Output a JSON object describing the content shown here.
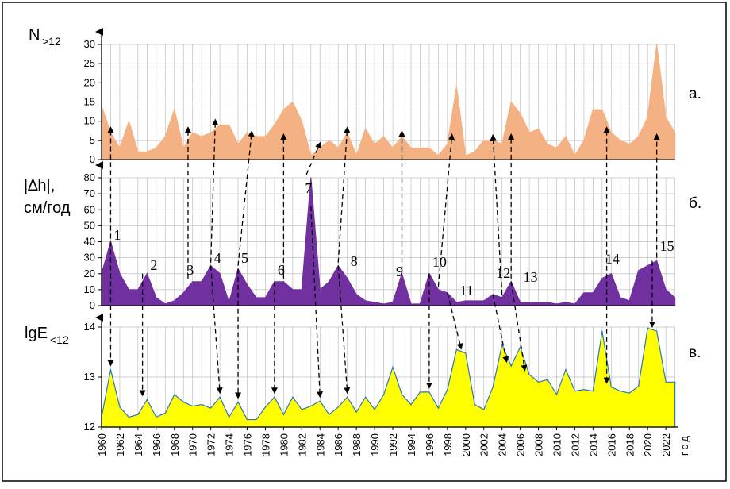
{
  "colors": {
    "panel_a_fill": "#F4B183",
    "panel_b_fill": "#7030A0",
    "panel_c_fill": "#FFFF00",
    "panel_c_line": "#2E75B6",
    "grid": "#BFBFBF",
    "axis": "#000000"
  },
  "chart_data": [
    {
      "type": "area",
      "panel_label": "а.",
      "ylabel_main": "N",
      "ylabel_sub": ">12",
      "ylim": [
        0,
        30
      ],
      "yticks": [
        0,
        5,
        10,
        15,
        20,
        25,
        30
      ],
      "grid": true,
      "x_start": 1960,
      "x_step": 1,
      "values": [
        14,
        7,
        3,
        10,
        2,
        2,
        3,
        6,
        13,
        3,
        7,
        6,
        7,
        9,
        9,
        4,
        7,
        6,
        6,
        9,
        13,
        15,
        10,
        1,
        3,
        5,
        3,
        7,
        1,
        8,
        4,
        6,
        3,
        6,
        3,
        3,
        3,
        1,
        4,
        19,
        1,
        2,
        5,
        5,
        4,
        15,
        12,
        7,
        8,
        4,
        3,
        6,
        1,
        5,
        13,
        13,
        7,
        5,
        4,
        6,
        11,
        30,
        11,
        7
      ]
    },
    {
      "type": "area",
      "panel_label": "б.",
      "ylabel_main": "|∆h|,",
      "ylabel_unit": "см/год",
      "ylim": [
        0,
        80
      ],
      "yticks": [
        0,
        10,
        20,
        30,
        40,
        50,
        60,
        70,
        80
      ],
      "grid": true,
      "x_start": 1960,
      "x_step": 1,
      "values": [
        20,
        40,
        20,
        10,
        10,
        20,
        5,
        1,
        3,
        8,
        15,
        15,
        25,
        20,
        2,
        23,
        13,
        5,
        5,
        15,
        15,
        10,
        10,
        80,
        10,
        15,
        25,
        17,
        7,
        3,
        2,
        1,
        2,
        20,
        1,
        1,
        20,
        10,
        8,
        2,
        3,
        3,
        3,
        7,
        5,
        15,
        2,
        2,
        2,
        2,
        1,
        2,
        1,
        8,
        8,
        17,
        20,
        5,
        3,
        22,
        25,
        28,
        10,
        5
      ],
      "annotations": [
        {
          "label": "1",
          "year": 1961
        },
        {
          "label": "2",
          "year": 1965
        },
        {
          "label": "3",
          "year": 1969
        },
        {
          "label": "4",
          "year": 1972
        },
        {
          "label": "5",
          "year": 1975
        },
        {
          "label": "6",
          "year": 1979
        },
        {
          "label": "7",
          "year": 1982
        },
        {
          "label": "8",
          "year": 1987
        },
        {
          "label": "9",
          "year": 1992
        },
        {
          "label": "10",
          "year": 1996
        },
        {
          "label": "11",
          "year": 1999
        },
        {
          "label": "12",
          "year": 2003
        },
        {
          "label": "13",
          "year": 2006
        },
        {
          "label": "14",
          "year": 2015
        },
        {
          "label": "15",
          "year": 2021
        }
      ]
    },
    {
      "type": "area",
      "panel_label": "в.",
      "ylabel_main": "lgE",
      "ylabel_sub": "<12",
      "ylim": [
        12,
        14
      ],
      "yticks": [
        12,
        13,
        14
      ],
      "grid": true,
      "x_start": 1960,
      "x_step": 1,
      "values": [
        12.2,
        13.15,
        12.4,
        12.2,
        12.25,
        12.55,
        12.2,
        12.28,
        12.65,
        12.5,
        12.42,
        12.45,
        12.38,
        12.6,
        12.2,
        12.5,
        12.15,
        12.15,
        12.4,
        12.6,
        12.25,
        12.6,
        12.35,
        12.42,
        12.52,
        12.25,
        12.4,
        12.6,
        12.3,
        12.6,
        12.35,
        12.65,
        13.2,
        12.65,
        12.45,
        12.7,
        12.7,
        12.38,
        12.75,
        13.55,
        13.48,
        12.45,
        12.35,
        12.8,
        13.65,
        13.22,
        13.6,
        13.05,
        12.9,
        12.95,
        12.65,
        13.15,
        12.72,
        12.75,
        12.72,
        13.92,
        12.8,
        12.72,
        12.68,
        12.82,
        13.98,
        13.92,
        12.9,
        12.9
      ]
    }
  ],
  "x_axis": {
    "tick_labels": [
      "1960",
      "1962",
      "1964",
      "1966",
      "1968",
      "1970",
      "1972",
      "1974",
      "1976",
      "1978",
      "1980",
      "1982",
      "1984",
      "1986",
      "1988",
      "1990",
      "1992",
      "1994",
      "1996",
      "1998",
      "2000",
      "2002",
      "2004",
      "2006",
      "2008",
      "2010",
      "2012",
      "2014",
      "2016",
      "2018",
      "2020",
      "2022"
    ],
    "unit_label": "год"
  },
  "arrows": [
    {
      "from_panel": "b",
      "from_year": 1961,
      "to_panel": "a",
      "to_year": 1961,
      "direction": "up"
    },
    {
      "from_panel": "b",
      "from_year": 1961,
      "to_panel": "c",
      "to_year": 1961,
      "direction": "down"
    },
    {
      "from_panel": "b",
      "from_year": 1964.5,
      "to_panel": "c",
      "to_year": 1964.5,
      "direction": "down"
    },
    {
      "from_panel": "b",
      "from_year": 1969.5,
      "to_panel": "a",
      "to_year": 1969.5,
      "direction": "up"
    },
    {
      "from_panel": "b",
      "from_year": 1972,
      "to_panel": "a",
      "to_year": 1972.5,
      "direction": "up"
    },
    {
      "from_panel": "b",
      "from_year": 1972,
      "to_panel": "c",
      "to_year": 1973,
      "direction": "down"
    },
    {
      "from_panel": "b",
      "from_year": 1975,
      "to_panel": "a",
      "to_year": 1976.5,
      "direction": "up"
    },
    {
      "from_panel": "b",
      "from_year": 1975,
      "to_panel": "c",
      "to_year": 1975,
      "direction": "down"
    },
    {
      "from_panel": "b",
      "from_year": 1980,
      "to_panel": "a",
      "to_year": 1980,
      "direction": "up"
    },
    {
      "from_panel": "b",
      "from_year": 1979,
      "to_panel": "c",
      "to_year": 1979,
      "direction": "down"
    },
    {
      "from_panel": "b",
      "from_year": 1982.5,
      "to_panel": "a",
      "to_year": 1984,
      "direction": "up"
    },
    {
      "from_panel": "b",
      "from_year": 1983,
      "to_panel": "c",
      "to_year": 1984,
      "direction": "down"
    },
    {
      "from_panel": "b",
      "from_year": 1986,
      "to_panel": "a",
      "to_year": 1987,
      "direction": "up"
    },
    {
      "from_panel": "b",
      "from_year": 1986,
      "to_panel": "c",
      "to_year": 1987,
      "direction": "down"
    },
    {
      "from_panel": "b",
      "from_year": 1993,
      "to_panel": "a",
      "to_year": 1993,
      "direction": "up"
    },
    {
      "from_panel": "b",
      "from_year": 1996,
      "to_panel": "c",
      "to_year": 1996,
      "direction": "down"
    },
    {
      "from_panel": "b",
      "from_year": 1997,
      "to_panel": "a",
      "to_year": 1998.5,
      "direction": "up"
    },
    {
      "from_panel": "b",
      "from_year": 1998,
      "to_panel": "c",
      "to_year": 1999.5,
      "direction": "down"
    },
    {
      "from_panel": "b",
      "from_year": 2004,
      "to_panel": "a",
      "to_year": 2003,
      "direction": "up"
    },
    {
      "from_panel": "b",
      "from_year": 2003,
      "to_panel": "c",
      "to_year": 2004.5,
      "direction": "down"
    },
    {
      "from_panel": "b",
      "from_year": 2005,
      "to_panel": "a",
      "to_year": 2005,
      "direction": "up"
    },
    {
      "from_panel": "b",
      "from_year": 2005,
      "to_panel": "c",
      "to_year": 2006.5,
      "direction": "down"
    },
    {
      "from_panel": "b",
      "from_year": 2015.5,
      "to_panel": "a",
      "to_year": 2015.5,
      "direction": "up"
    },
    {
      "from_panel": "b",
      "from_year": 2015.5,
      "to_panel": "c",
      "to_year": 2015.5,
      "direction": "down"
    },
    {
      "from_panel": "b",
      "from_year": 2021,
      "to_panel": "a",
      "to_year": 2021,
      "direction": "up"
    },
    {
      "from_panel": "b",
      "from_year": 2020.5,
      "to_panel": "c",
      "to_year": 2020.5,
      "direction": "down"
    }
  ]
}
